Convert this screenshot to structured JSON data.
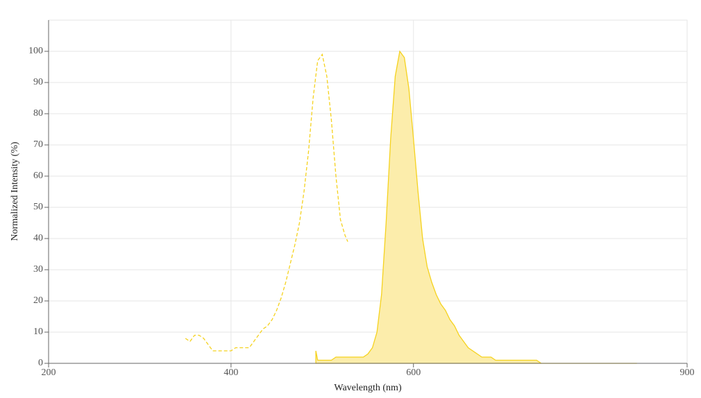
{
  "chart_data": {
    "type": "line",
    "xlabel": "Wavelength (nm)",
    "ylabel": "Normalized Intensity (%)",
    "xlim": [
      200,
      900
    ],
    "xticks": [
      200,
      400,
      600,
      900
    ],
    "ylim": [
      0,
      110
    ],
    "yticks": [
      0,
      10,
      20,
      30,
      40,
      50,
      60,
      70,
      80,
      90,
      100
    ],
    "grid": true,
    "series": [
      {
        "color": "#f5d21e",
        "dashed": true,
        "filled": false,
        "x": [
          350,
          355,
          360,
          365,
          370,
          375,
          380,
          385,
          390,
          395,
          400,
          405,
          410,
          415,
          420,
          425,
          430,
          435,
          440,
          445,
          450,
          455,
          460,
          465,
          470,
          475,
          480,
          485,
          490,
          495,
          500,
          505,
          510,
          515,
          520,
          525,
          528
        ],
        "values": [
          8,
          7,
          9,
          9,
          8,
          6,
          4,
          4,
          4,
          4,
          4,
          5,
          5,
          5,
          5,
          7,
          9,
          11,
          12,
          14,
          17,
          21,
          26,
          32,
          38,
          45,
          55,
          68,
          85,
          97,
          99,
          92,
          78,
          60,
          46,
          41,
          39
        ]
      },
      {
        "color": "#f5d21e",
        "fill": "#fcedab",
        "dashed": false,
        "filled": true,
        "x": [
          493,
          495,
          500,
          505,
          510,
          515,
          520,
          525,
          530,
          535,
          540,
          545,
          550,
          555,
          560,
          565,
          570,
          575,
          580,
          585,
          590,
          595,
          600,
          605,
          610,
          615,
          620,
          625,
          630,
          635,
          640,
          645,
          650,
          655,
          660,
          665,
          670,
          675,
          680,
          685,
          690,
          695,
          700,
          705,
          710,
          715,
          720,
          725,
          730,
          735,
          740,
          760,
          780,
          800,
          820,
          845
        ],
        "values": [
          4,
          1,
          1,
          1,
          1,
          2,
          2,
          2,
          2,
          2,
          2,
          2,
          3,
          5,
          10,
          22,
          45,
          72,
          92,
          100,
          98,
          88,
          72,
          55,
          40,
          31,
          26,
          22,
          19,
          17,
          14,
          12,
          9,
          7,
          5,
          4,
          3,
          2,
          2,
          2,
          1,
          1,
          1,
          1,
          1,
          1,
          1,
          1,
          1,
          1,
          0,
          0,
          0,
          0,
          0,
          0
        ]
      }
    ]
  }
}
